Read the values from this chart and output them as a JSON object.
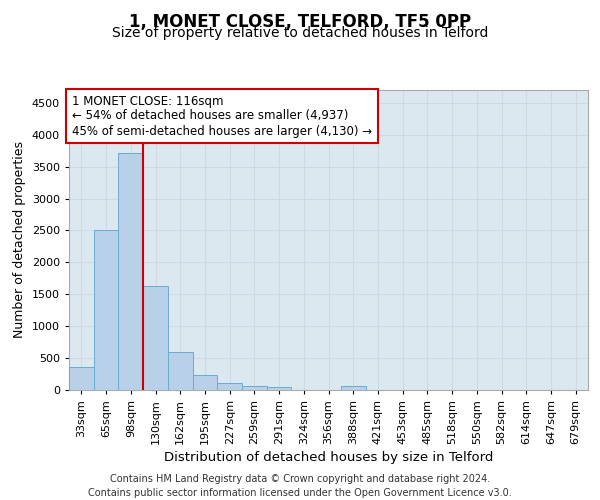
{
  "title1": "1, MONET CLOSE, TELFORD, TF5 0PP",
  "title2": "Size of property relative to detached houses in Telford",
  "xlabel": "Distribution of detached houses by size in Telford",
  "ylabel": "Number of detached properties",
  "categories": [
    "33sqm",
    "65sqm",
    "98sqm",
    "130sqm",
    "162sqm",
    "195sqm",
    "227sqm",
    "259sqm",
    "291sqm",
    "324sqm",
    "356sqm",
    "388sqm",
    "421sqm",
    "453sqm",
    "485sqm",
    "518sqm",
    "550sqm",
    "582sqm",
    "614sqm",
    "647sqm",
    "679sqm"
  ],
  "values": [
    360,
    2500,
    3720,
    1630,
    590,
    230,
    110,
    70,
    45,
    0,
    0,
    55,
    0,
    0,
    0,
    0,
    0,
    0,
    0,
    0,
    0
  ],
  "bar_color": "#b8d0e8",
  "bar_edgecolor": "#6aabd2",
  "vline_x": 2.5,
  "vline_color": "#cc0000",
  "annotation_text": "1 MONET CLOSE: 116sqm\n← 54% of detached houses are smaller (4,937)\n45% of semi-detached houses are larger (4,130) →",
  "annotation_box_facecolor": "#ffffff",
  "annotation_box_edgecolor": "#cc0000",
  "ylim": [
    0,
    4700
  ],
  "yticks": [
    0,
    500,
    1000,
    1500,
    2000,
    2500,
    3000,
    3500,
    4000,
    4500
  ],
  "grid_color": "#d0d8e4",
  "bg_color": "#dce8f0",
  "footer": "Contains HM Land Registry data © Crown copyright and database right 2024.\nContains public sector information licensed under the Open Government Licence v3.0.",
  "title1_fontsize": 12,
  "title2_fontsize": 10,
  "xlabel_fontsize": 9.5,
  "ylabel_fontsize": 9,
  "tick_fontsize": 8,
  "annot_fontsize": 8.5,
  "footer_fontsize": 7
}
